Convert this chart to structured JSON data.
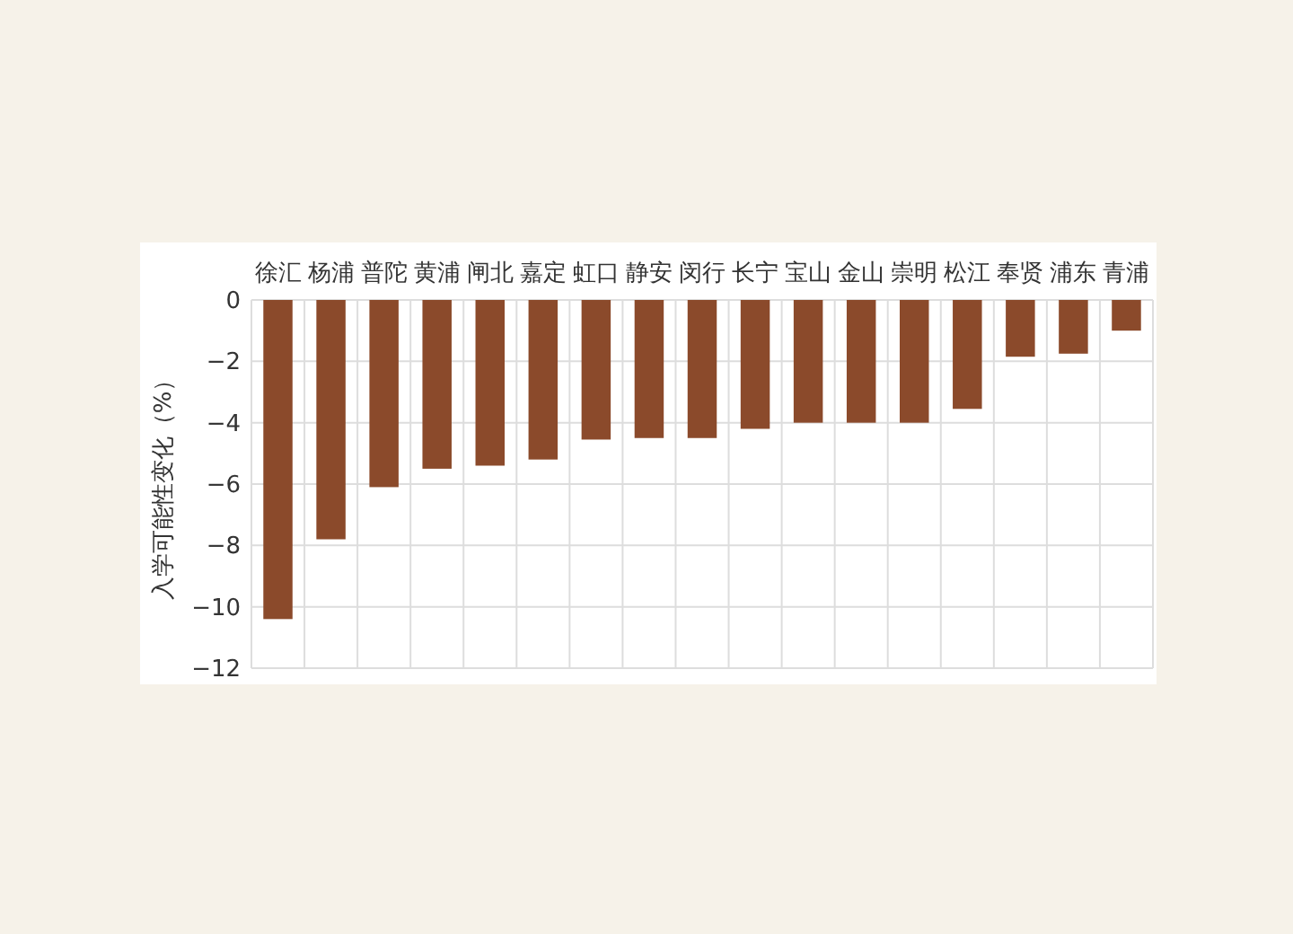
{
  "chart_data": {
    "type": "bar",
    "ylabel": "入学可能性变化（%）",
    "categories": [
      "徐汇",
      "杨浦",
      "普陀",
      "黄浦",
      "闸北",
      "嘉定",
      "虹口",
      "静安",
      "闵行",
      "长宁",
      "宝山",
      "金山",
      "崇明",
      "松江",
      "奉贤",
      "浦东",
      "青浦"
    ],
    "values": [
      -10.4,
      -7.8,
      -6.1,
      -5.5,
      -5.4,
      -5.2,
      -4.55,
      -4.5,
      -4.5,
      -4.2,
      -4.0,
      -4.0,
      -4.0,
      -3.55,
      -1.85,
      -1.75,
      -1.0
    ],
    "color": "#8b4a2b",
    "ylim": [
      -12,
      0
    ],
    "yticks": [
      {
        "value": -12,
        "label": "−12"
      },
      {
        "value": -10,
        "label": "−10"
      },
      {
        "value": -8,
        "label": "−8"
      },
      {
        "value": -6,
        "label": "−6"
      },
      {
        "value": -4,
        "label": "−4"
      },
      {
        "value": -2,
        "label": "−2"
      },
      0
    ],
    "grid": true
  }
}
